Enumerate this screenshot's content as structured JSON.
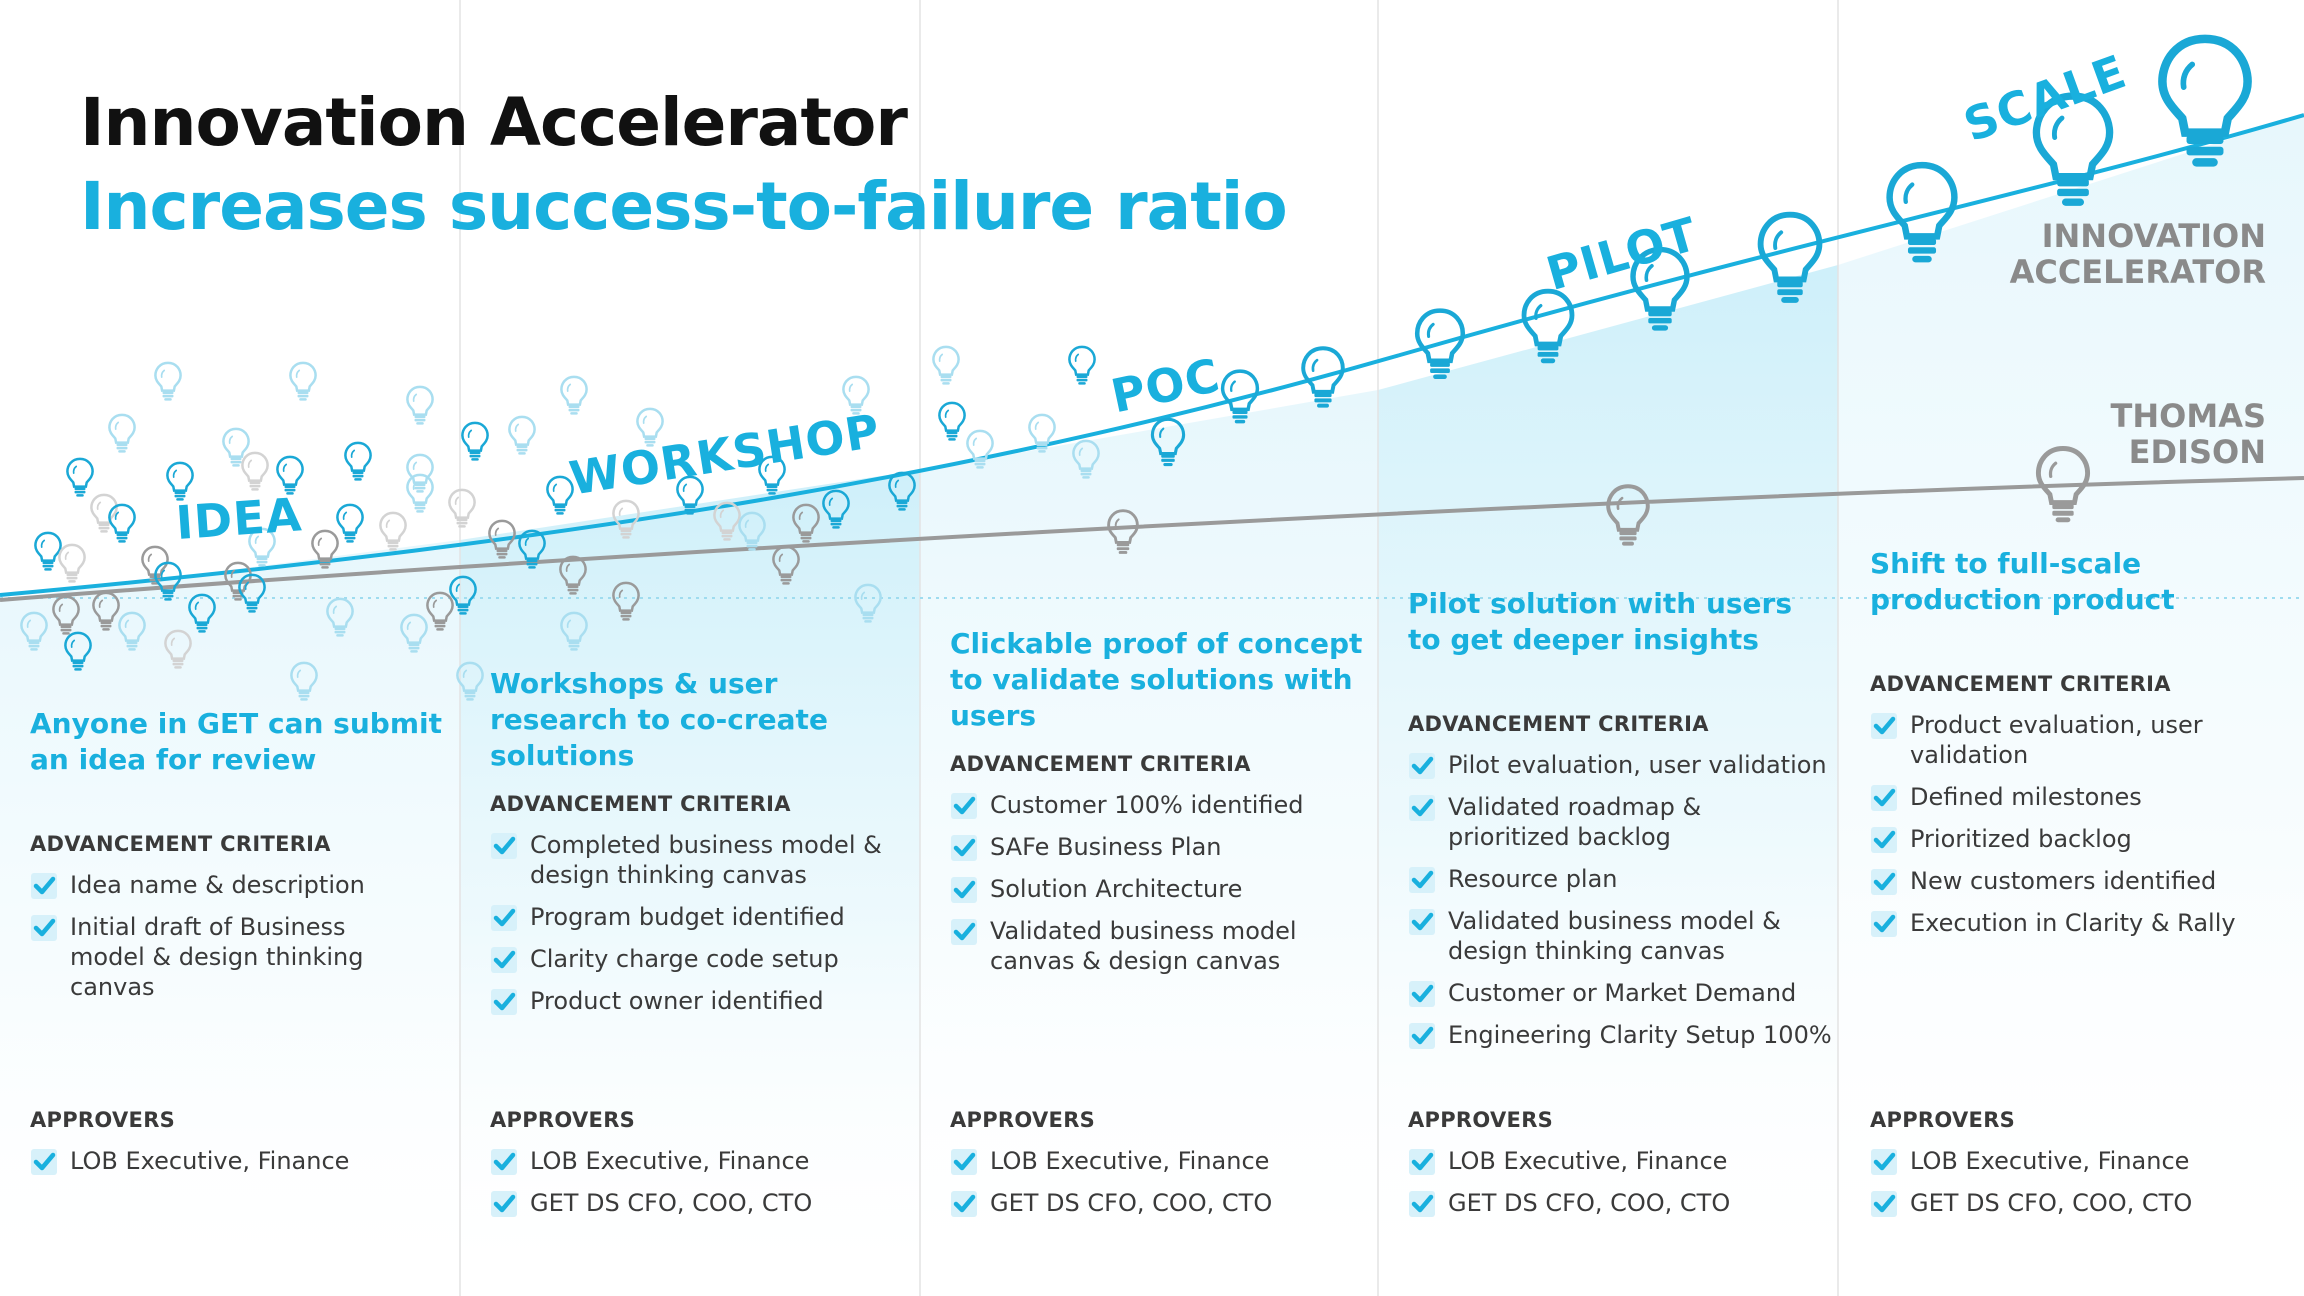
{
  "title": "Innovation Accelerator",
  "subtitle": "Increases success-to-failure ratio",
  "curves": {
    "accelerator_label": [
      "INNOVATION",
      "ACCELERATOR"
    ],
    "edison_label": [
      "THOMAS",
      "EDISON"
    ]
  },
  "colors": {
    "accent": "#19b0de",
    "gray": "#9a9a9a",
    "text": "#3a3a3a",
    "title": "#111111"
  },
  "stages": [
    {
      "label": "IDEA",
      "heading": "Anyone in GET can submit an idea for review",
      "criteria_title": "ADVANCEMENT CRITERIA",
      "criteria": [
        "Idea name & description",
        "Initial draft of Business model & design thinking canvas"
      ],
      "approvers_title": "APPROVERS",
      "approvers": [
        "LOB Executive, Finance"
      ]
    },
    {
      "label": "WORKSHOP",
      "heading": "Workshops & user research to co-create solutions",
      "criteria_title": "ADVANCEMENT CRITERIA",
      "criteria": [
        "Completed business model & design thinking canvas",
        "Program budget identified",
        "Clarity charge code setup",
        "Product owner identified"
      ],
      "approvers_title": "APPROVERS",
      "approvers": [
        "LOB Executive, Finance",
        "GET DS CFO, COO, CTO"
      ]
    },
    {
      "label": "POC",
      "heading": "Clickable proof of concept to validate solutions with users",
      "criteria_title": "ADVANCEMENT CRITERIA",
      "criteria": [
        "Customer 100% identified",
        "SAFe Business Plan",
        "Solution Architecture",
        "Validated business model canvas & design canvas"
      ],
      "approvers_title": "APPROVERS",
      "approvers": [
        "LOB Executive, Finance",
        "GET DS CFO, COO, CTO"
      ]
    },
    {
      "label": "PILOT",
      "heading": "Pilot solution with users to get deeper insights",
      "criteria_title": "ADVANCEMENT CRITERIA",
      "criteria": [
        "Pilot evaluation, user validation",
        "Validated roadmap & prioritized backlog",
        "Resource plan",
        "Validated business model & design thinking canvas",
        "Customer or Market Demand",
        "Engineering Clarity Setup 100%"
      ],
      "approvers_title": "APPROVERS",
      "approvers": [
        "LOB Executive, Finance",
        "GET DS CFO, COO, CTO"
      ]
    },
    {
      "label": "SCALE",
      "heading": "Shift to full-scale production product",
      "criteria_title": "ADVANCEMENT CRITERIA",
      "criteria": [
        "Product evaluation, user validation",
        "Defined milestones",
        "Prioritized backlog",
        "New customers identified",
        "Execution in Clarity & Rally"
      ],
      "approvers_title": "APPROVERS",
      "approvers": [
        "LOB Executive, Finance",
        "GET DS CFO, COO, CTO"
      ]
    }
  ]
}
